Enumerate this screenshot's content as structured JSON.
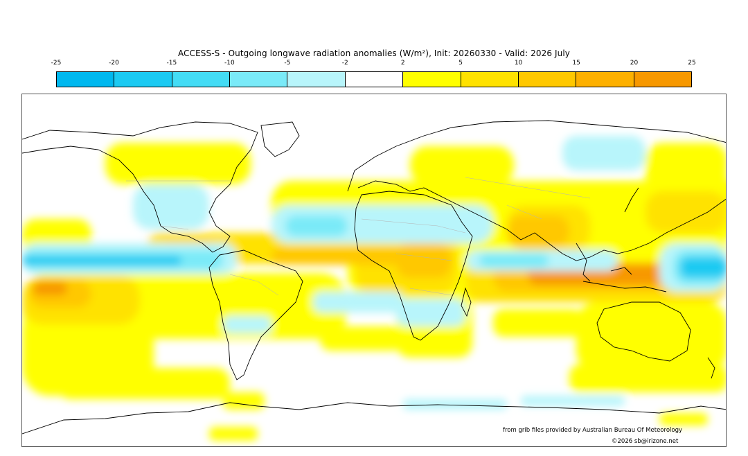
{
  "title": "ACCESS-S - Outgoing longwave radiation anomalies (W/m²), Init: 20260330 - Valid: 2026 July",
  "colorbar": {
    "ticks": [
      "-25",
      "-20",
      "-15",
      "-10",
      "-5",
      "-2",
      "2",
      "5",
      "10",
      "15",
      "20",
      "25"
    ],
    "colors": [
      "#00b8ef",
      "#1ccaf2",
      "#44dcf5",
      "#7aeaf8",
      "#b8f5fb",
      "#ffffff",
      "#ffff00",
      "#ffe200",
      "#ffc800",
      "#fdb000",
      "#f79800"
    ]
  },
  "credits": {
    "source": "from grib files provided by Australian Bureau Of Meteorology",
    "copyright": "©2026 sb@irizone.net"
  }
}
